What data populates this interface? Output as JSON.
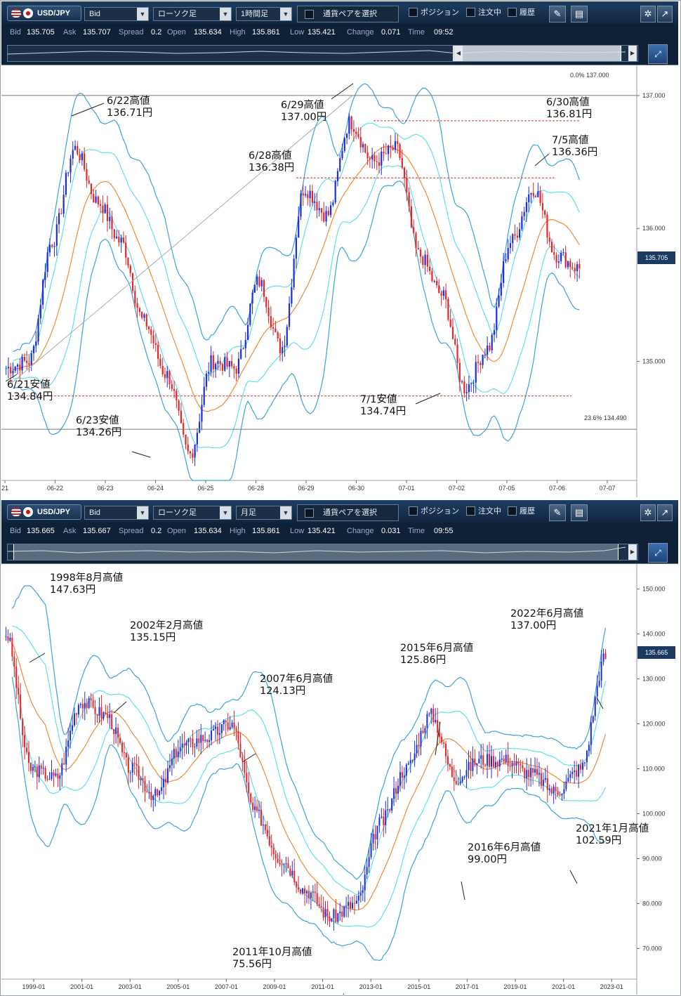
{
  "top": {
    "toolbar": {
      "pair": "USD/JPY",
      "price_type": "Bid",
      "chart_type": "ローソク足",
      "timeframe": "1時間足",
      "pair_select": "通貨ペアを選択",
      "position_label": "ポジション",
      "orders_label": "注文中",
      "history_label": "履歴"
    },
    "status": [
      {
        "label": "Bid",
        "value": "135.705"
      },
      {
        "label": "Ask",
        "value": "135.707"
      },
      {
        "label": "Spread",
        "value": "0.2"
      },
      {
        "label": "Open",
        "value": "135.634"
      },
      {
        "label": "High",
        "value": "135.861"
      },
      {
        "label": "Low",
        "value": "135.421"
      },
      {
        "label": "Change",
        "value": "0.071"
      },
      {
        "label": "Time",
        "value": "09:52"
      }
    ],
    "fib_top": "0.0%  137.000",
    "fib_bottom": "23.6%  134.490",
    "current_price": "135.705",
    "annotations": [
      {
        "line1": "6/22高値",
        "line2": "136.71円"
      },
      {
        "line1": "6/29高値",
        "line2": "137.00円"
      },
      {
        "line1": "6/30高値",
        "line2": "136.81円"
      },
      {
        "line1": "6/28高値",
        "line2": "136.38円"
      },
      {
        "line1": "7/5高値",
        "line2": "136.36円"
      },
      {
        "line1": "6/21安値",
        "line2": "134.84円"
      },
      {
        "line1": "7/1安値",
        "line2": "134.74円"
      },
      {
        "line1": "6/23安値",
        "line2": "134.26円"
      }
    ]
  },
  "bottom": {
    "toolbar": {
      "pair": "USD/JPY",
      "price_type": "Bid",
      "chart_type": "ローソク足",
      "timeframe": "月足",
      "pair_select": "通貨ペアを選択",
      "position_label": "ポジション",
      "orders_label": "注文中",
      "history_label": "履歴"
    },
    "status": [
      {
        "label": "Bid",
        "value": "135.665"
      },
      {
        "label": "Ask",
        "value": "135.667"
      },
      {
        "label": "Spread",
        "value": "0.2"
      },
      {
        "label": "Open",
        "value": "135.634"
      },
      {
        "label": "High",
        "value": "135.861"
      },
      {
        "label": "Low",
        "value": "135.421"
      },
      {
        "label": "Change",
        "value": "0.031"
      },
      {
        "label": "Time",
        "value": "09:55"
      }
    ],
    "current_price": "135.665",
    "annotations": [
      {
        "line1": "1998年8月高値",
        "line2": "147.63円"
      },
      {
        "line1": "2002年2月高値",
        "line2": "135.15円"
      },
      {
        "line1": "2007年6月高値",
        "line2": "124.13円"
      },
      {
        "line1": "2015年6月高値",
        "line2": "125.86円"
      },
      {
        "line1": "2022年6月高値",
        "line2": "137.00円"
      },
      {
        "line1": "2016年6月高値",
        "line2": "99.00円"
      },
      {
        "line1": "2021年1月高値",
        "line2": "102.59円"
      },
      {
        "line1": "2011年10月高値",
        "line2": "75.56円"
      }
    ]
  },
  "chart_data": [
    {
      "type": "candlestick",
      "title": "USD/JPY 1時間足",
      "xlabel": "",
      "ylabel": "",
      "x_ticks": [
        "21",
        "06-22",
        "06-23",
        "06-24",
        "06-25",
        "06-28",
        "06-29",
        "06-30",
        "07-01",
        "07-02",
        "07-05",
        "07-06",
        "07-07"
      ],
      "y_ticks": [
        "137.000",
        "136.000",
        "135.000"
      ],
      "ylim": [
        134.2,
        137.1
      ],
      "indicators": [
        "Bollinger Bands (±1σ, ±2σ)",
        "SMA"
      ],
      "horizontal_levels": [
        137.0,
        136.81,
        136.38,
        136.36,
        134.84,
        134.74,
        134.49
      ],
      "series": [
        {
          "name": "USD/JPY",
          "x": [
            "06-21",
            "06-21",
            "06-22",
            "06-22",
            "06-22",
            "06-23",
            "06-23",
            "06-23",
            "06-24",
            "06-24",
            "06-25",
            "06-25",
            "06-28",
            "06-28",
            "06-29",
            "06-29",
            "06-30",
            "06-30",
            "07-01",
            "07-01",
            "07-02",
            "07-02",
            "07-05",
            "07-05",
            "07-06",
            "07-06"
          ],
          "close": [
            134.95,
            135.0,
            135.9,
            136.6,
            136.2,
            135.9,
            135.3,
            134.9,
            134.3,
            135.0,
            134.95,
            135.6,
            135.1,
            136.3,
            136.1,
            136.8,
            136.5,
            136.6,
            135.8,
            135.5,
            134.8,
            135.1,
            135.9,
            136.3,
            135.8,
            135.7
          ]
        }
      ],
      "key_points": [
        {
          "x": "06-21",
          "value": 134.84
        },
        {
          "x": "06-22",
          "value": 136.71
        },
        {
          "x": "06-23",
          "value": 134.26
        },
        {
          "x": "06-28",
          "value": 136.38
        },
        {
          "x": "06-29",
          "value": 137.0
        },
        {
          "x": "06-30",
          "value": 136.81
        },
        {
          "x": "07-01",
          "value": 134.74
        },
        {
          "x": "07-05",
          "value": 136.36
        }
      ]
    },
    {
      "type": "candlestick",
      "title": "USD/JPY 月足",
      "xlabel": "",
      "ylabel": "",
      "x_ticks": [
        "1999-01",
        "2001-01",
        "2003-01",
        "2005-01",
        "2007-01",
        "2009-01",
        "2011-01",
        "2013-01",
        "2015-01",
        "2017-01",
        "2019-01",
        "2021-01",
        "2023-01"
      ],
      "y_ticks": [
        "150.000",
        "140.000",
        "130.000",
        "120.000",
        "110.000",
        "100.000",
        "90.000",
        "80.000",
        "70.000"
      ],
      "ylim": [
        66,
        154
      ],
      "indicators": [
        "Bollinger Bands (±1σ, ±2σ)",
        "SMA"
      ],
      "series": [
        {
          "name": "USD/JPY",
          "x": [
            "1998",
            "1999",
            "2000",
            "2001",
            "2002",
            "2003",
            "2004",
            "2005",
            "2006",
            "2007",
            "2008",
            "2009",
            "2010",
            "2011",
            "2012",
            "2013",
            "2014",
            "2015",
            "2016",
            "2017",
            "2018",
            "2019",
            "2020",
            "2021",
            "2022"
          ],
          "close": [
            140,
            110,
            108,
            125,
            122,
            110,
            104,
            115,
            117,
            120,
            100,
            90,
            83,
            77,
            80,
            98,
            110,
            122,
            108,
            112,
            112,
            109,
            105,
            110,
            135
          ]
        }
      ],
      "key_points": [
        {
          "x": "1998-08",
          "value": 147.63
        },
        {
          "x": "2002-02",
          "value": 135.15
        },
        {
          "x": "2007-06",
          "value": 124.13
        },
        {
          "x": "2011-10",
          "value": 75.56
        },
        {
          "x": "2015-06",
          "value": 125.86
        },
        {
          "x": "2016-06",
          "value": 99.0
        },
        {
          "x": "2021-01",
          "value": 102.59
        },
        {
          "x": "2022-06",
          "value": 137.0
        }
      ]
    }
  ]
}
